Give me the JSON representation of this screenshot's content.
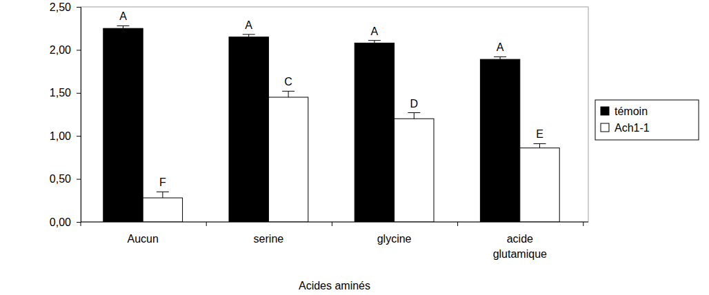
{
  "chart_data": {
    "type": "bar",
    "x_label": "Acides aminés",
    "categories": [
      "Aucun",
      "serine",
      "glycine",
      "acide glutamique"
    ],
    "series": [
      {
        "name": "témoin",
        "color": "#000000",
        "values": [
          2.25,
          2.15,
          2.08,
          1.89
        ],
        "errors": [
          0.03,
          0.03,
          0.03,
          0.03
        ],
        "letters": [
          "A",
          "A",
          "A",
          "A"
        ]
      },
      {
        "name": "Ach1-1",
        "color": "#ffffff",
        "values": [
          0.28,
          1.45,
          1.2,
          0.86
        ],
        "errors": [
          0.07,
          0.07,
          0.07,
          0.05
        ],
        "letters": [
          "F",
          "C",
          "D",
          "E"
        ]
      }
    ],
    "ylim": [
      0,
      2.5
    ],
    "yticks": [
      {
        "value": 0,
        "label": "0,00"
      },
      {
        "value": 0.5,
        "label": "0,50"
      },
      {
        "value": 1,
        "label": "1,00"
      },
      {
        "value": 1.5,
        "label": "1,50"
      },
      {
        "value": 2,
        "label": "2,00"
      },
      {
        "value": 2.5,
        "label": "2,50"
      }
    ],
    "grid": false,
    "legend": "right"
  }
}
